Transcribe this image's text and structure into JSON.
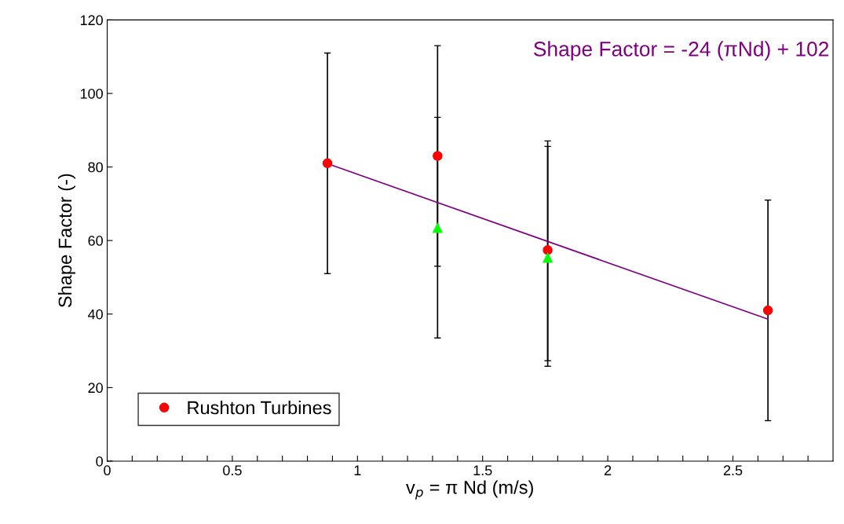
{
  "chart_data": {
    "type": "scatter",
    "xlabel": "v$_{p}$ = π Nd (m/s)",
    "ylabel": "Shape Factor (-)",
    "annotations": [
      "Shape Factor = -24 (πNd) + 102"
    ],
    "series": [
      {
        "name": "Rushton Turbines",
        "marker": "circle",
        "color": "#ff0000",
        "x": [
          0.88,
          1.32,
          1.76,
          2.64
        ],
        "values": [
          81,
          83,
          57.4,
          41
        ],
        "errors": [
          [
            51,
            111
          ],
          [
            33.5,
            113
          ],
          [
            25.8,
            87.1
          ],
          [
            11,
            71
          ]
        ]
      },
      {
        "marker": "triangle",
        "color": "#00ff00",
        "x": [
          1.32,
          1.76
        ],
        "values": [
          63.4,
          55.3
        ],
        "errors": [
          [
            53,
            93.5
          ],
          [
            27.3,
            85.6
          ]
        ]
      },
      {
        "type": "line",
        "color": "#800080",
        "x": [
          0.88,
          2.64
        ],
        "values": [
          80.9,
          38.6
        ]
      }
    ],
    "xlim": [
      0,
      2.9
    ],
    "ylim": [
      0,
      120
    ],
    "xticks": [
      0,
      {
        "value": 0.1,
        "label": null
      },
      {
        "value": 0.2,
        "label": null
      },
      {
        "value": 0.3,
        "label": null
      },
      {
        "value": 0.4,
        "label": null
      },
      0.5,
      {
        "value": 0.6,
        "label": null
      },
      {
        "value": 0.7,
        "label": null
      },
      {
        "value": 0.8,
        "label": null
      },
      {
        "value": 0.9,
        "label": null
      },
      1,
      {
        "value": 1.1,
        "label": null
      },
      {
        "value": 1.2,
        "label": null
      },
      {
        "value": 1.3,
        "label": null
      },
      {
        "value": 1.4,
        "label": null
      },
      1.5,
      {
        "value": 1.6,
        "label": null
      },
      {
        "value": 1.7,
        "label": null
      },
      {
        "value": 1.8,
        "label": null
      },
      {
        "value": 1.9,
        "label": null
      },
      2,
      {
        "value": 2.1,
        "label": null
      },
      {
        "value": 2.2,
        "label": null
      },
      {
        "value": 2.3,
        "label": null
      },
      {
        "value": 2.4,
        "label": null
      },
      2.5,
      {
        "value": 2.6,
        "label": null
      },
      {
        "value": 2.7,
        "label": null
      },
      {
        "value": 2.8,
        "label": null
      }
    ],
    "yticks": [
      0,
      20,
      40,
      60,
      80,
      100,
      120
    ],
    "grid": false,
    "legend": "bottom left"
  }
}
